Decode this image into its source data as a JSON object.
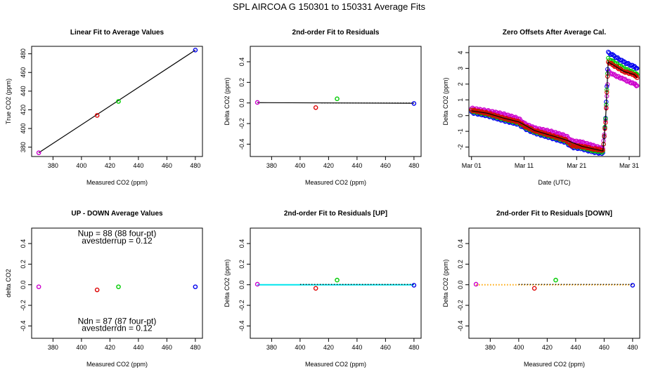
{
  "figure_title": "SPL   AIRCOA G   150301 to 150331   Average Fits",
  "chart_data": [
    {
      "type": "scatter",
      "title": "Linear Fit to Average Values",
      "xlabel": "Measured CO2 (ppm)",
      "ylabel": "True CO2 (ppm)",
      "xlim": [
        365,
        485
      ],
      "ylim": [
        370,
        488
      ],
      "xticks": [
        380,
        400,
        420,
        440,
        460,
        480
      ],
      "yticks": [
        380,
        400,
        420,
        440,
        460,
        480
      ],
      "points": [
        {
          "x": 370,
          "y": 374,
          "color": "#cc00cc"
        },
        {
          "x": 411,
          "y": 414,
          "color": "#dd0000"
        },
        {
          "x": 426,
          "y": 429,
          "color": "#00cc00"
        },
        {
          "x": 480,
          "y": 484,
          "color": "#0000ee"
        }
      ],
      "lines": [
        {
          "x": [
            370,
            480
          ],
          "y": [
            374,
            484
          ],
          "color": "#000000",
          "style": "solid"
        }
      ]
    },
    {
      "type": "scatter",
      "title": "2nd-order Fit to Residuals",
      "xlabel": "Measured CO2 (ppm)",
      "ylabel": "Delta CO2 (ppm)",
      "xlim": [
        365,
        485
      ],
      "ylim": [
        -0.52,
        0.55
      ],
      "xticks": [
        380,
        400,
        420,
        440,
        460,
        480
      ],
      "yticks": [
        -0.4,
        -0.2,
        0.0,
        0.2,
        0.4
      ],
      "ytick_labels": [
        "-0.4",
        "-0.2",
        "0.0",
        "0.2",
        "0.4"
      ],
      "points": [
        {
          "x": 370,
          "y": 0.005,
          "color": "#cc00cc"
        },
        {
          "x": 411,
          "y": -0.045,
          "color": "#dd0000"
        },
        {
          "x": 426,
          "y": 0.04,
          "color": "#00cc00"
        },
        {
          "x": 480,
          "y": -0.005,
          "color": "#0000ee"
        }
      ],
      "lines": [
        {
          "x": [
            370,
            480
          ],
          "y": [
            0.003,
            -0.003
          ],
          "color": "#000000",
          "style": "solid"
        },
        {
          "x": [
            415,
            480
          ],
          "y": [
            0.0,
            0.0
          ],
          "color": "#000000",
          "style": "dotted"
        }
      ]
    },
    {
      "type": "scatter",
      "title": "Zero Offsets After Average Cal.",
      "xlabel": "Date (UTC)",
      "ylabel": "Delta CO2 (ppm)",
      "xlim": [
        -0.5,
        32
      ],
      "ylim": [
        -2.6,
        4.4
      ],
      "xticks": [
        0,
        10,
        20,
        30
      ],
      "xtick_labels": [
        "Mar 01",
        "Mar 11",
        "Mar 21",
        "Mar 31"
      ],
      "yticks": [
        -2,
        -1,
        0,
        1,
        2,
        3,
        4
      ],
      "ytick_labels": [
        "-2",
        "-1",
        "0",
        "1",
        "2",
        "3",
        "4"
      ],
      "series": [
        {
          "color": "#cc00cc",
          "x": [
            0,
            3,
            6,
            9,
            10,
            12,
            15,
            18,
            19,
            21,
            23,
            25,
            25.5,
            26,
            27,
            29,
            31,
            31.5
          ],
          "y": [
            0.45,
            0.3,
            0.1,
            -0.2,
            -0.5,
            -0.8,
            -1.0,
            -1.3,
            -1.6,
            -1.7,
            -1.9,
            -2.1,
            -0.3,
            2.8,
            2.6,
            2.3,
            2.0,
            1.9
          ]
        },
        {
          "color": "#0000ee",
          "x": [
            0,
            3,
            6,
            9,
            10,
            12,
            15,
            18,
            19,
            21,
            23,
            25,
            25.5,
            26,
            27,
            29,
            31,
            31.5
          ],
          "y": [
            0.2,
            0.0,
            -0.3,
            -0.55,
            -0.8,
            -1.1,
            -1.4,
            -1.7,
            -2.0,
            -2.1,
            -2.3,
            -2.4,
            -0.2,
            4.0,
            3.8,
            3.4,
            3.1,
            3.0
          ]
        },
        {
          "color": "#00cc00",
          "x": [
            0,
            3,
            6,
            9,
            10,
            12,
            15,
            18,
            19,
            21,
            23,
            25,
            25.5,
            26,
            27,
            29,
            31,
            31.5
          ],
          "y": [
            0.3,
            0.1,
            -0.2,
            -0.45,
            -0.7,
            -1.0,
            -1.3,
            -1.6,
            -1.9,
            -2.0,
            -2.2,
            -2.3,
            -0.25,
            3.6,
            3.4,
            3.0,
            2.7,
            2.6
          ]
        },
        {
          "color": "#dd0000",
          "x": [
            0,
            3,
            6,
            9,
            10,
            12,
            15,
            18,
            19,
            21,
            23,
            25,
            25.5,
            26,
            27,
            29,
            31,
            31.5
          ],
          "y": [
            0.35,
            0.15,
            -0.15,
            -0.4,
            -0.65,
            -0.95,
            -1.25,
            -1.55,
            -1.9,
            -1.95,
            -2.1,
            -2.2,
            -0.45,
            3.4,
            3.2,
            2.8,
            2.6,
            2.4
          ]
        }
      ],
      "lines": [
        {
          "x": [
            0,
            3,
            6,
            9,
            12,
            15,
            18,
            21,
            23,
            25,
            25.5,
            26,
            27,
            29,
            31,
            31.5
          ],
          "y": [
            0.3,
            0.15,
            -0.15,
            -0.4,
            -0.95,
            -1.25,
            -1.55,
            -1.95,
            -2.1,
            -2.25,
            -0.3,
            3.4,
            3.2,
            2.8,
            2.6,
            2.4
          ],
          "color": "#000000",
          "style": "solid"
        }
      ]
    },
    {
      "type": "scatter",
      "title": "UP - DOWN Average Values",
      "xlabel": "Measured CO2 (ppm)",
      "ylabel": "delta CO2",
      "xlim": [
        365,
        485
      ],
      "ylim": [
        -0.52,
        0.55
      ],
      "xticks": [
        380,
        400,
        420,
        440,
        460,
        480
      ],
      "yticks": [
        -0.4,
        -0.2,
        0.0,
        0.2,
        0.4
      ],
      "ytick_labels": [
        "-0.4",
        "-0.2",
        "0.0",
        "0.2",
        "0.4"
      ],
      "points": [
        {
          "x": 370,
          "y": -0.02,
          "color": "#cc00cc"
        },
        {
          "x": 411,
          "y": -0.05,
          "color": "#dd0000"
        },
        {
          "x": 426,
          "y": -0.02,
          "color": "#00cc00"
        },
        {
          "x": 480,
          "y": -0.02,
          "color": "#0000ee"
        }
      ],
      "annotations": [
        {
          "text": "Nup = 88 (88 four-pt)",
          "x": 425,
          "y": 0.47
        },
        {
          "text": "avestderrup =  0.12",
          "x": 425,
          "y": 0.4
        },
        {
          "text": "Ndn = 87 (87 four-pt)",
          "x": 425,
          "y": -0.38
        },
        {
          "text": "avestderrdn =  0.12",
          "x": 425,
          "y": -0.45
        }
      ]
    },
    {
      "type": "scatter",
      "title": "2nd-order Fit to Residuals [UP]",
      "xlabel": "Measured CO2 (ppm)",
      "ylabel": "Delta CO2 (ppm)",
      "xlim": [
        365,
        485
      ],
      "ylim": [
        -0.52,
        0.55
      ],
      "xticks": [
        380,
        400,
        420,
        440,
        460,
        480
      ],
      "yticks": [
        -0.4,
        -0.2,
        0.0,
        0.2,
        0.4
      ],
      "ytick_labels": [
        "-0.4",
        "-0.2",
        "0.0",
        "0.2",
        "0.4"
      ],
      "points": [
        {
          "x": 370,
          "y": 0.005,
          "color": "#cc00cc"
        },
        {
          "x": 411,
          "y": -0.035,
          "color": "#dd0000"
        },
        {
          "x": 426,
          "y": 0.045,
          "color": "#00cc00"
        },
        {
          "x": 480,
          "y": -0.005,
          "color": "#0000ee"
        }
      ],
      "lines": [
        {
          "x": [
            370,
            480
          ],
          "y": [
            0.0,
            0.0
          ],
          "color": "#00e5ee",
          "style": "solid",
          "width": 2
        },
        {
          "x": [
            400,
            480
          ],
          "y": [
            0.003,
            0.003
          ],
          "color": "#000000",
          "style": "dotted"
        }
      ]
    },
    {
      "type": "scatter",
      "title": "2nd-order Fit to Residuals [DOWN]",
      "xlabel": "Measured CO2 (ppm)",
      "ylabel": "Delta CO2 (ppm)",
      "xlim": [
        365,
        485
      ],
      "ylim": [
        -0.52,
        0.55
      ],
      "xticks": [
        380,
        400,
        420,
        440,
        460,
        480
      ],
      "yticks": [
        -0.4,
        -0.2,
        0.0,
        0.2,
        0.4
      ],
      "ytick_labels": [
        "-0.4",
        "-0.2",
        "0.0",
        "0.2",
        "0.4"
      ],
      "points": [
        {
          "x": 370,
          "y": 0.005,
          "color": "#cc00cc"
        },
        {
          "x": 411,
          "y": -0.035,
          "color": "#dd0000"
        },
        {
          "x": 426,
          "y": 0.045,
          "color": "#00cc00"
        },
        {
          "x": 480,
          "y": -0.005,
          "color": "#0000ee"
        }
      ],
      "lines": [
        {
          "x": [
            370,
            480
          ],
          "y": [
            0.0,
            0.0
          ],
          "color": "#ffa500",
          "style": "dotted",
          "width": 2
        },
        {
          "x": [
            400,
            480
          ],
          "y": [
            0.003,
            0.003
          ],
          "color": "#000000",
          "style": "dotted"
        }
      ]
    }
  ]
}
